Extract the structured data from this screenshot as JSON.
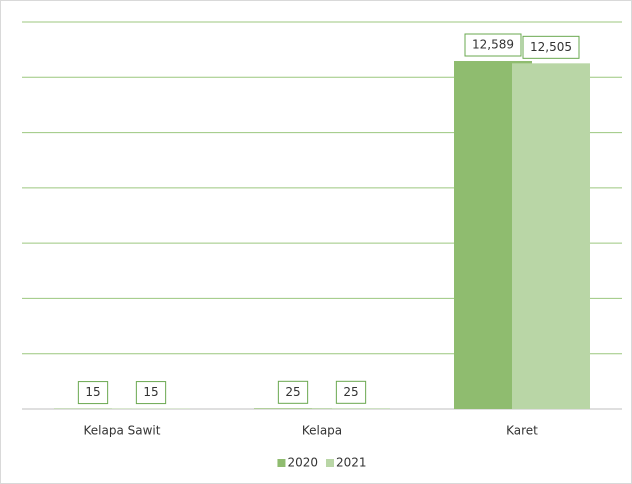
{
  "chart_data": {
    "type": "bar",
    "categories": [
      "Kelapa Sawit",
      "Kelapa",
      "Karet"
    ],
    "series": [
      {
        "name": "2020",
        "color": "#8fbc6f",
        "values": [
          15,
          25,
          12589
        ],
        "value_labels": [
          "15",
          "25",
          "12,589"
        ]
      },
      {
        "name": "2021",
        "color": "#b9d6a6",
        "values": [
          15,
          25,
          12505
        ],
        "value_labels": [
          "15",
          "25",
          "12,505"
        ]
      }
    ],
    "ylim": [
      0,
      14000
    ],
    "yticks": [
      0,
      2000,
      4000,
      6000,
      8000,
      10000,
      12000,
      14000
    ],
    "grid": true,
    "show_tick_labels": false,
    "legend": "bottom"
  }
}
